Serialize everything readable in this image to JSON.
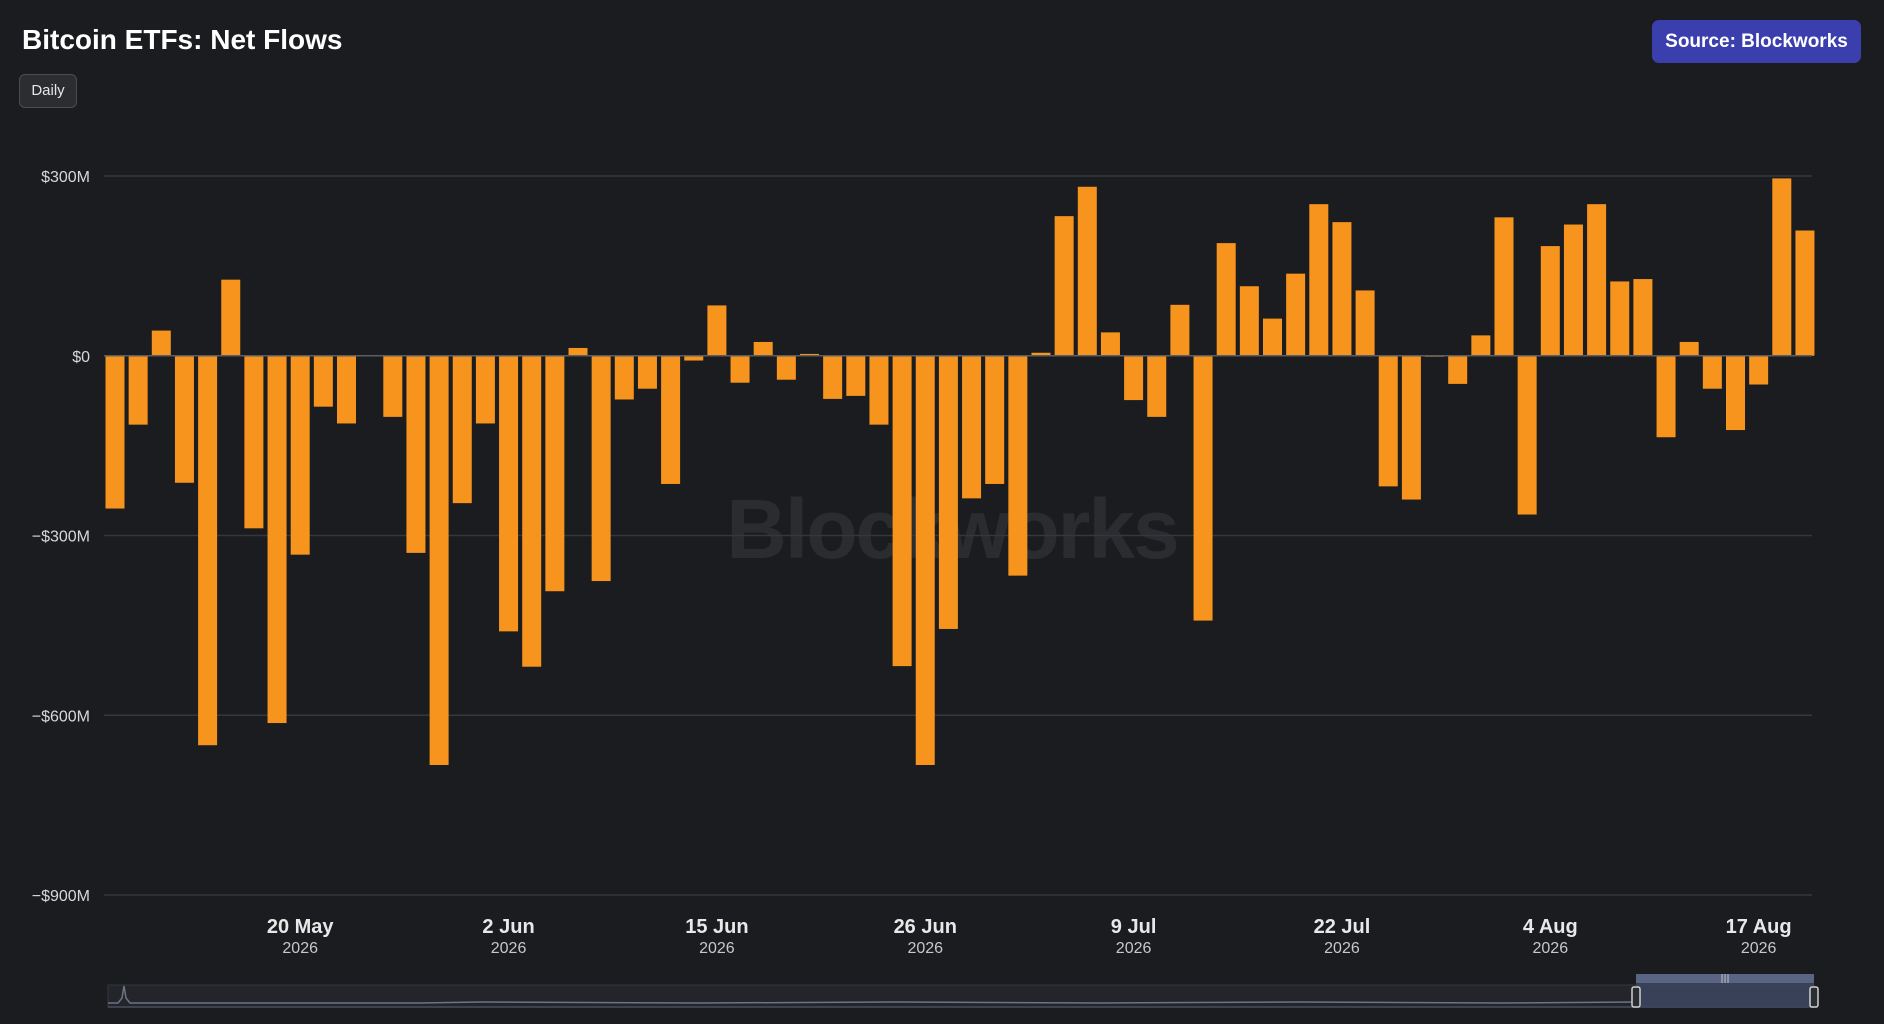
{
  "header": {
    "title": "Bitcoin ETFs: Net Flows",
    "period_label": "Daily",
    "source_label": "Source: Blockworks"
  },
  "watermark": "Blockworks",
  "colors": {
    "background": "#1b1c1f",
    "bar": "#f7941d",
    "grid": "#35373c",
    "accent": "#3b3fae"
  },
  "chart_data": {
    "type": "bar",
    "title": "Bitcoin ETFs: Net Flows",
    "xlabel": "",
    "ylabel": "",
    "ylim": [
      -900,
      300
    ],
    "y_unit": "$M",
    "y_ticks": [
      {
        "value": 300,
        "label": "$300M"
      },
      {
        "value": 0,
        "label": "$0"
      },
      {
        "value": -300,
        "label": "−$300M"
      },
      {
        "value": -600,
        "label": "−$600M"
      },
      {
        "value": -900,
        "label": "−$900M"
      }
    ],
    "x_ticks": [
      {
        "index": 8,
        "label": "20 May",
        "year": "2026"
      },
      {
        "index": 17,
        "label": "2 Jun",
        "year": "2026"
      },
      {
        "index": 26,
        "label": "15 Jun",
        "year": "2026"
      },
      {
        "index": 35,
        "label": "26 Jun",
        "year": "2026"
      },
      {
        "index": 44,
        "label": "9 Jul",
        "year": "2026"
      },
      {
        "index": 53,
        "label": "22 Jul",
        "year": "2026"
      },
      {
        "index": 62,
        "label": "4 Aug",
        "year": "2026"
      },
      {
        "index": 71,
        "label": "17 Aug",
        "year": "2026"
      }
    ],
    "grid": true,
    "legend": "none",
    "values": [
      -255,
      -115,
      42,
      -212,
      -650,
      127,
      -288,
      -613,
      -332,
      -85,
      -113,
      0,
      -102,
      -329,
      -683,
      -246,
      -113,
      -460,
      -519,
      -393,
      13,
      -376,
      -73,
      -55,
      -214,
      -8,
      84,
      -45,
      23,
      -40,
      3,
      -72,
      -67,
      -115,
      -518,
      -683,
      -456,
      -238,
      -214,
      -367,
      5,
      233,
      282,
      39,
      -74,
      -102,
      85,
      -442,
      188,
      116,
      62,
      137,
      253,
      223,
      109,
      -218,
      -240,
      -1,
      -47,
      34,
      231,
      -265,
      183,
      219,
      253,
      124,
      128,
      -136,
      23,
      -55,
      -124,
      -48,
      296,
      209
    ]
  }
}
